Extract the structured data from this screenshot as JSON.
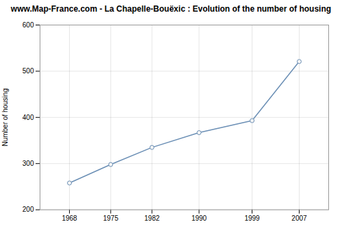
{
  "chart_data": {
    "type": "line",
    "title": "www.Map-France.com - La Chapelle-Bouëxic : Evolution of the number of housing",
    "ylabel": "Number of housing",
    "x": [
      1968,
      1975,
      1982,
      1990,
      1999,
      2007
    ],
    "values": [
      258,
      298,
      335,
      367,
      393,
      521
    ],
    "xlim": [
      1963,
      2012
    ],
    "xticks": [
      1968,
      1975,
      1982,
      1990,
      1999,
      2007
    ],
    "ylim": [
      200,
      600
    ],
    "yticks": [
      200,
      300,
      400,
      500,
      600
    ],
    "grid": true,
    "color": "#6b8fb5",
    "marker": "circle"
  }
}
